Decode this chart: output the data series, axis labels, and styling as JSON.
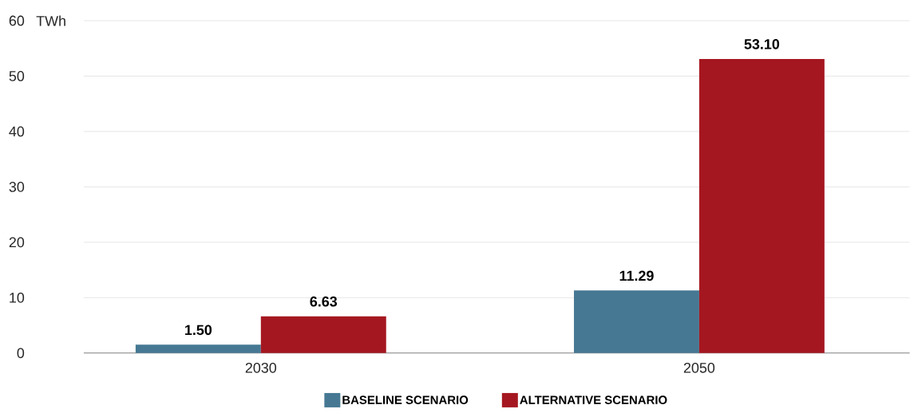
{
  "chart_data": {
    "type": "bar",
    "ylabel": "TWh",
    "categories": [
      "2030",
      "2050"
    ],
    "series": [
      {
        "name": "BASELINE SCENARIO",
        "color": "#467893",
        "values": [
          1.5,
          11.29
        ],
        "value_labels": [
          "1.50",
          "11.29"
        ]
      },
      {
        "name": "ALTERNATIVE SCENARIO",
        "color": "#a51720",
        "values": [
          6.63,
          53.1
        ],
        "value_labels": [
          "6.63",
          "53.10"
        ]
      }
    ],
    "ylim": [
      0,
      60
    ],
    "yticks": [
      0,
      10,
      20,
      30,
      40,
      50,
      60
    ],
    "grid": "y",
    "legend": "bottom"
  }
}
